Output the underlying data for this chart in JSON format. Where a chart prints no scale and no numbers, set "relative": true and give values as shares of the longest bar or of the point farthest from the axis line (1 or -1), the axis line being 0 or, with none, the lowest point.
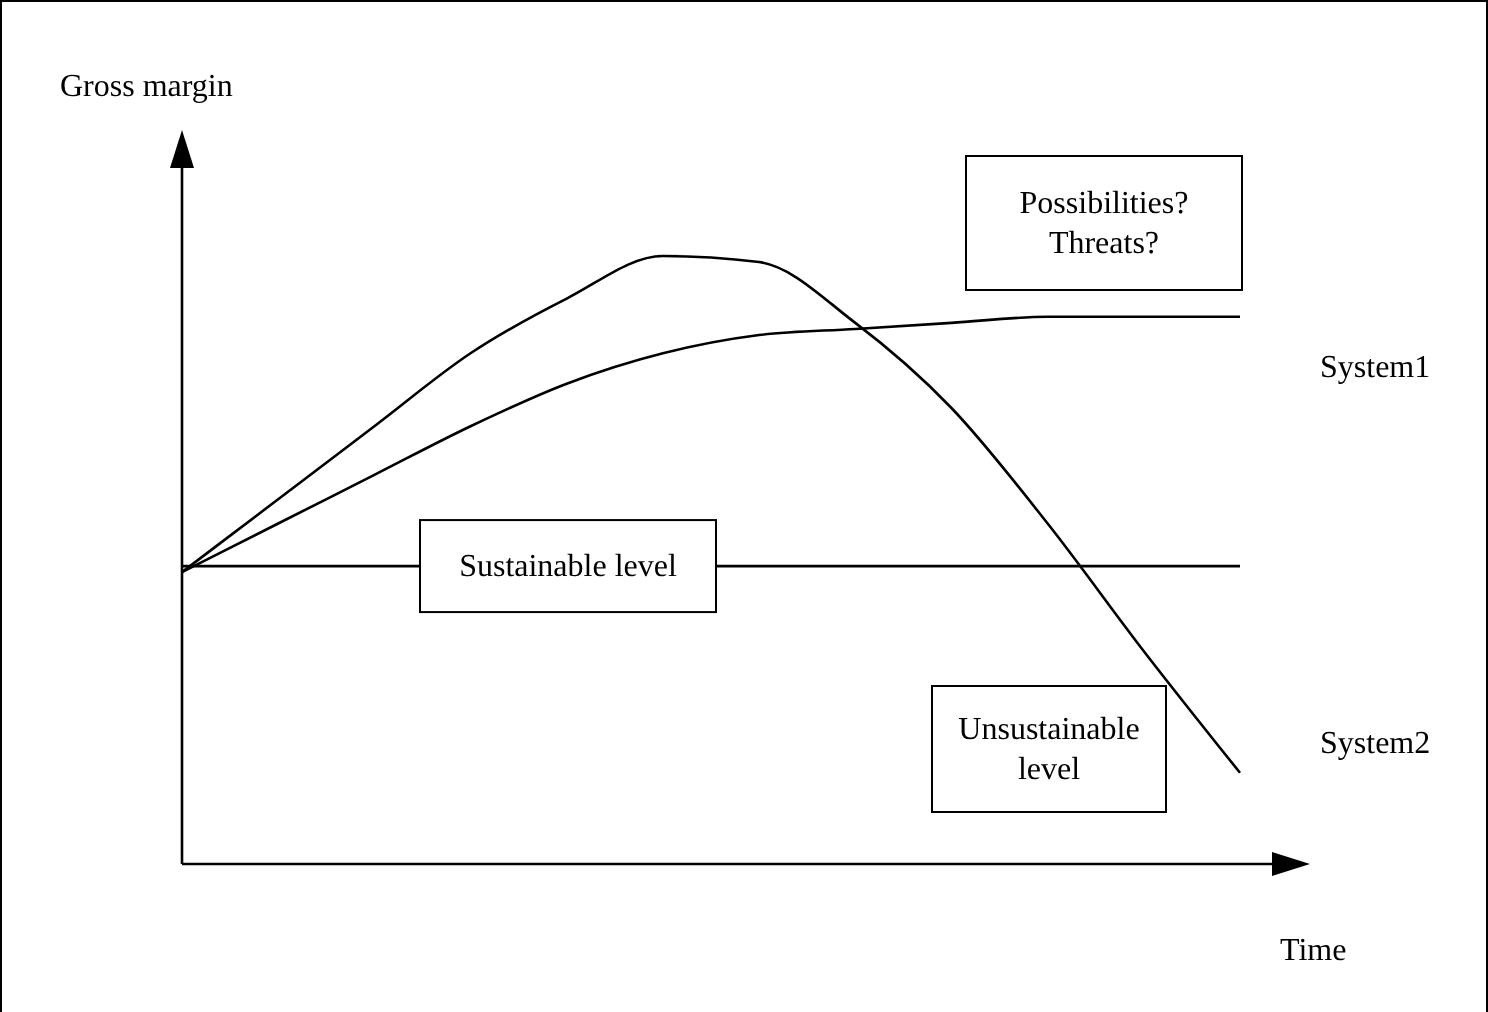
{
  "chart_data": {
    "type": "line",
    "relative": true,
    "xlabel": "Time",
    "ylabel": "Gross margin",
    "categories": [
      null,
      null,
      null,
      null,
      null,
      null,
      null,
      null,
      null,
      null,
      null,
      null
    ],
    "series": [
      {
        "name": "System1",
        "color": "#000000",
        "values": [
          0.48,
          0.56,
          0.64,
          0.72,
          0.79,
          0.84,
          0.87,
          0.88,
          0.89,
          0.9,
          0.9,
          0.9
        ]
      },
      {
        "name": "System2",
        "color": "#000000",
        "values": [
          0.48,
          0.6,
          0.72,
          0.84,
          0.93,
          1.0,
          0.99,
          0.89,
          0.75,
          0.56,
          0.35,
          0.15
        ]
      }
    ],
    "ref_lines": [
      {
        "axis": "y",
        "value": 0.49,
        "label": "Sustainable level",
        "color": "#000000"
      }
    ],
    "annotations": [
      "Possibilities? Threats?",
      "Unsustainable level"
    ],
    "legend": false,
    "marker": "none",
    "line_style": "solid"
  }
}
